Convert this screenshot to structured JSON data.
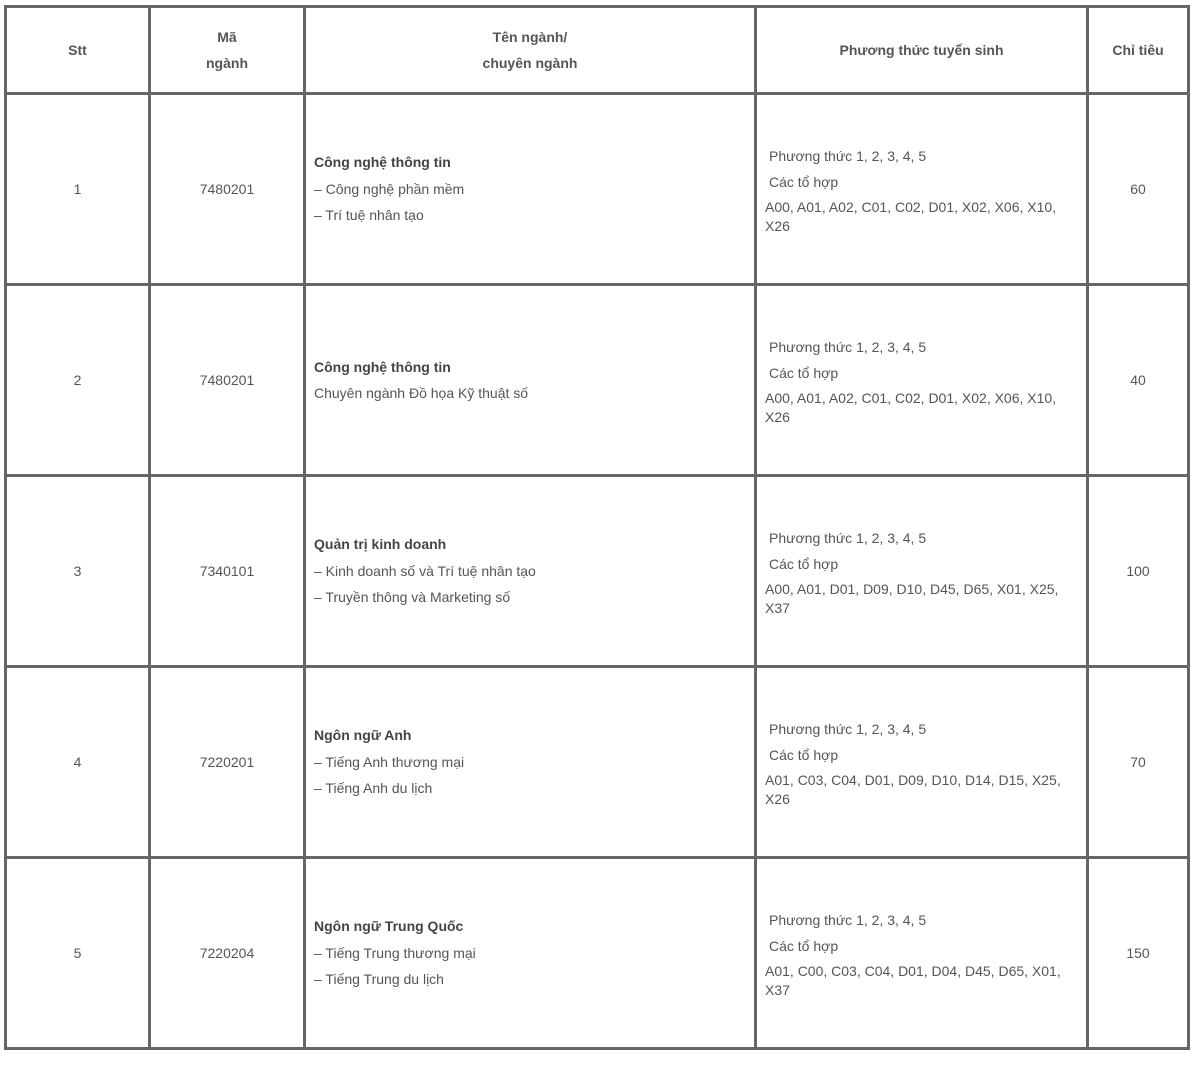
{
  "header": {
    "stt": "Stt",
    "ma_line1": "Mã",
    "ma_line2": "ngành",
    "ten_line1": "Tên ngành/",
    "ten_line2": "chuyên ngành",
    "phuong_thuc": "Phương thức tuyển sinh",
    "chi_tieu": "Chỉ tiêu"
  },
  "rows": [
    {
      "stt": "1",
      "ma": "7480201",
      "title": "Công nghệ thông tin",
      "subs": [
        "– Công nghệ phần mềm",
        "– Trí tuệ nhân tạo"
      ],
      "method": "Phương thức 1, 2, 3, 4, 5",
      "combo_label": "Các tổ hợp",
      "combos": "A00, A01, A02, C01, C02, D01, X02, X06, X10, X26",
      "quota": "60"
    },
    {
      "stt": "2",
      "ma": "7480201",
      "title": "Công nghệ thông tin",
      "subs": [
        "Chuyên ngành Đồ họa Kỹ thuật số",
        ""
      ],
      "method": "Phương thức 1, 2, 3, 4, 5",
      "combo_label": "Các tổ hợp",
      "combos": "A00, A01, A02, C01, C02, D01, X02, X06, X10, X26",
      "quota": "40"
    },
    {
      "stt": "3",
      "ma": "7340101",
      "title": "Quản trị kinh doanh",
      "subs": [
        "– Kinh doanh số và Trí tuệ nhân tạo",
        "– Truyền thông và Marketing số"
      ],
      "method": "Phương thức 1, 2, 3, 4, 5",
      "combo_label": "Các tổ hợp",
      "combos": "A00, A01, D01, D09, D10, D45, D65, X01, X25, X37",
      "quota": "100"
    },
    {
      "stt": "4",
      "ma": "7220201",
      "title": "Ngôn ngữ Anh",
      "subs": [
        "– Tiếng Anh thương mại",
        "– Tiếng Anh du lịch"
      ],
      "method": "Phương thức 1, 2, 3, 4, 5",
      "combo_label": "Các tổ hợp",
      "combos": "A01, C03, C04, D01, D09, D10, D14, D15, X25, X26",
      "quota": "70"
    },
    {
      "stt": "5",
      "ma": "7220204",
      "title": "Ngôn ngữ Trung Quốc",
      "subs": [
        "– Tiếng Trung thương mại",
        "– Tiếng Trung du lịch"
      ],
      "method": "Phương thức 1, 2, 3, 4, 5",
      "combo_label": "Các tổ hợp",
      "combos": "A01, C00, C03, C04, D01, D04, D45, D65, X01, X37",
      "quota": "150"
    }
  ]
}
